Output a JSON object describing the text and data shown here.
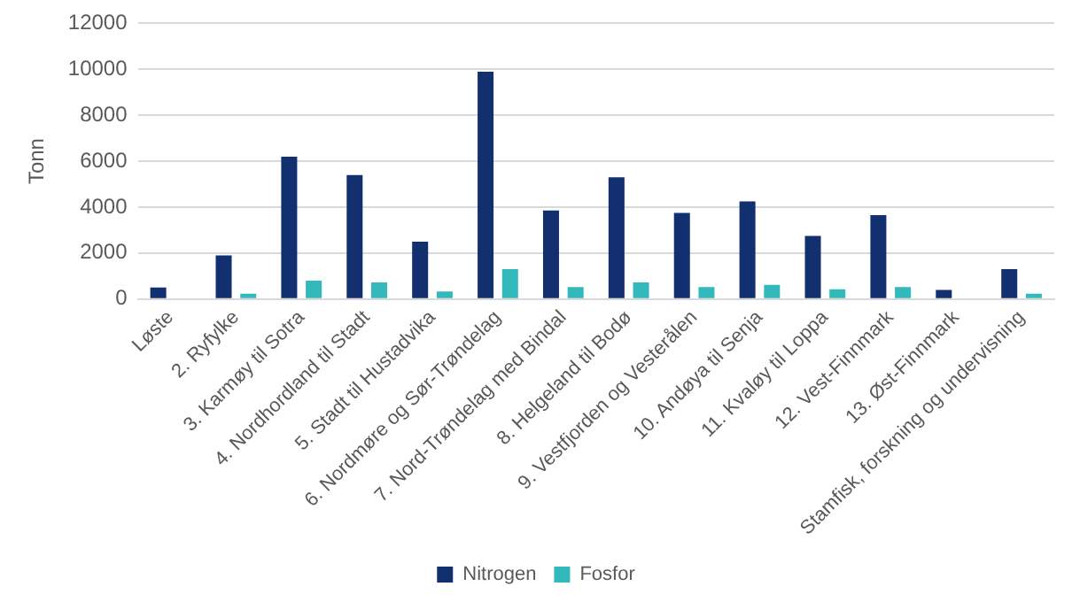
{
  "chart_data": {
    "type": "bar",
    "ylabel": "Tonn",
    "categories": [
      "Løste",
      "2. Ryfylke",
      "3. Karmøy til Sotra",
      "4. Nordhordland til Stadt",
      "5. Stadt til Hustadvika",
      "6. Nordmøre og Sør-Trøndelag",
      "7. Nord-Trøndelag med Bindal",
      "8. Helgeland til Bodø",
      "9. Vestfjorden og Vesterålen",
      "10. Andøya til Senja",
      "11. Kvaløy til Loppa",
      "12. Vest-Finnmark",
      "13. Øst-Finnmark",
      "Stamfisk, forskning og undervisning"
    ],
    "series": [
      {
        "name": "Nitrogen",
        "color": "#12306f",
        "values": [
          500,
          1900,
          6200,
          5400,
          2500,
          9900,
          3850,
          5300,
          3750,
          4250,
          2750,
          3650,
          400,
          1300
        ]
      },
      {
        "name": "Fosfor",
        "color": "#33b8bb",
        "values": [
          0,
          230,
          800,
          720,
          330,
          1300,
          520,
          720,
          520,
          620,
          420,
          520,
          0,
          230
        ]
      }
    ],
    "ylim": [
      0,
      12000
    ],
    "yticks": [
      0,
      2000,
      4000,
      6000,
      8000,
      10000,
      12000
    ],
    "grid": "y",
    "legend": "bottom"
  }
}
